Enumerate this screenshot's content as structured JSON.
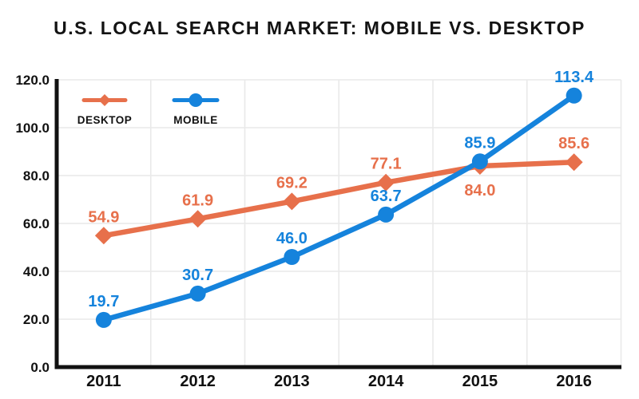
{
  "title": "U.S. LOCAL SEARCH MARKET: MOBILE VS. DESKTOP",
  "chart_data": {
    "type": "line",
    "title": "U.S. LOCAL SEARCH MARKET: MOBILE VS. DESKTOP",
    "x_categories": [
      "2011",
      "2012",
      "2013",
      "2014",
      "2015",
      "2016"
    ],
    "series": [
      {
        "name": "DESKTOP",
        "color": "#E7704B",
        "marker": "diamond",
        "values": [
          54.9,
          61.9,
          69.2,
          77.1,
          84.0,
          85.6
        ],
        "value_labels": [
          "54.9",
          "61.9",
          "69.2",
          "77.1",
          "84.0",
          "85.6"
        ],
        "label_positions": [
          "above",
          "above",
          "above",
          "above",
          "below",
          "above"
        ]
      },
      {
        "name": "MOBILE",
        "color": "#1583DC",
        "marker": "circle",
        "values": [
          19.7,
          30.7,
          46.0,
          63.7,
          85.9,
          113.4
        ],
        "value_labels": [
          "19.7",
          "30.7",
          "46.0",
          "63.7",
          "85.9",
          "113.4"
        ],
        "label_positions": [
          "above",
          "above",
          "above",
          "above",
          "above",
          "above"
        ]
      }
    ],
    "y_axis": {
      "min": 0,
      "max": 120,
      "tick_step": 20,
      "tick_labels": [
        "0.0",
        "20.0",
        "40.0",
        "60.0",
        "80.0",
        "100.0",
        "120.0"
      ]
    },
    "grid": true,
    "legend_position": "top-left-inside",
    "colors": {
      "axis": "#111111",
      "grid": "#E9E9E9",
      "tick_text": "#111111",
      "title_text": "#131313",
      "background": "#FFFFFF"
    }
  }
}
